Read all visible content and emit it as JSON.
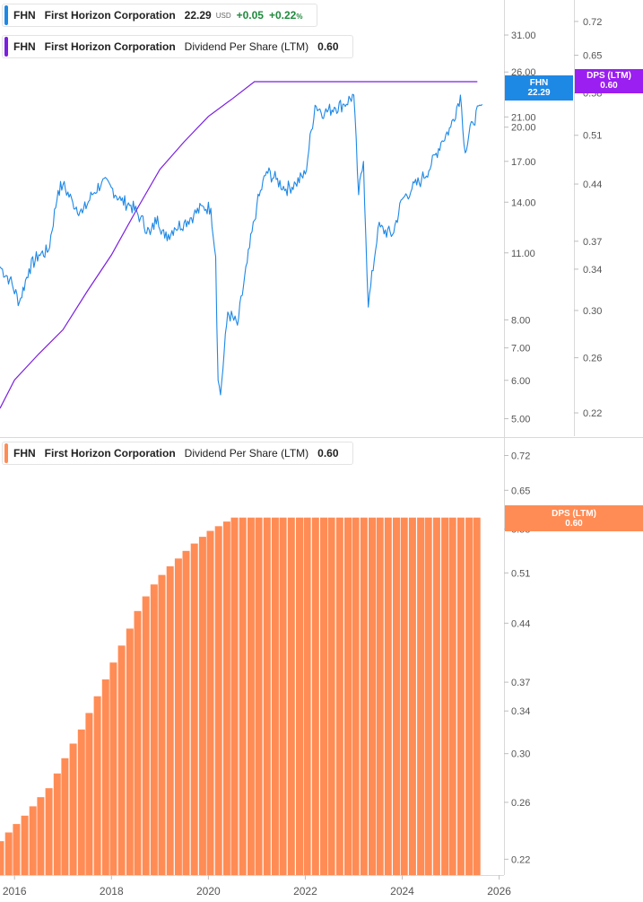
{
  "legend_top": {
    "ticker": "FHN",
    "company": "First Horizon Corporation",
    "price": "22.29",
    "currency": "USD",
    "change": "+0.05",
    "change_pct": "+0.22",
    "pct_sign": "%",
    "color": "#1e88e5"
  },
  "legend_mid": {
    "ticker": "FHN",
    "company": "First Horizon Corporation",
    "metric": "Dividend Per Share (LTM)",
    "value": "0.60",
    "color": "#7b1fe0"
  },
  "legend_bottom": {
    "ticker": "FHN",
    "company": "First Horizon Corporation",
    "metric": "Dividend Per Share (LTM)",
    "value": "0.60",
    "color": "#ff8c55"
  },
  "tags": {
    "price_label": "FHN",
    "price_value": "22.29",
    "dps_label": "DPS (LTM)",
    "dps_value": "0.60",
    "dps_bottom_label": "DPS (LTM)",
    "dps_bottom_value": "0.60"
  },
  "chart_data": [
    {
      "type": "line",
      "title": "FHN price",
      "scale": "log",
      "ylim": [
        4.6,
        36.0
      ],
      "yticks": [
        5.0,
        6.0,
        7.0,
        8.0,
        11.0,
        14.0,
        17.0,
        20.0,
        21.0,
        26.0,
        31.0
      ],
      "series": [
        {
          "name": "FHN",
          "color": "#1e88e5",
          "x": [
            2015.7,
            2015.9,
            2016.1,
            2016.3,
            2016.5,
            2016.7,
            2016.9,
            2017.0,
            2017.2,
            2017.4,
            2017.6,
            2017.8,
            2018.0,
            2018.2,
            2018.4,
            2018.6,
            2018.8,
            2018.95,
            2019.1,
            2019.3,
            2019.5,
            2019.7,
            2019.9,
            2020.05,
            2020.15,
            2020.2,
            2020.25,
            2020.4,
            2020.6,
            2020.8,
            2021.0,
            2021.2,
            2021.4,
            2021.6,
            2021.8,
            2022.0,
            2022.2,
            2022.4,
            2022.6,
            2022.8,
            2023.0,
            2023.1,
            2023.2,
            2023.3,
            2023.5,
            2023.8,
            2024.0,
            2024.2,
            2024.4,
            2024.6,
            2024.8,
            2025.0,
            2025.2,
            2025.3,
            2025.45,
            2025.65
          ],
          "values": [
            10.3,
            9.7,
            8.7,
            10.2,
            10.9,
            11.1,
            14.8,
            15.2,
            14.0,
            13.3,
            14.5,
            15.4,
            15.0,
            14.1,
            13.8,
            13.0,
            12.0,
            13.1,
            11.8,
            12.4,
            12.7,
            13.2,
            13.7,
            13.6,
            10.8,
            6.0,
            5.6,
            8.3,
            7.8,
            10.5,
            13.8,
            16.2,
            15.6,
            14.9,
            15.3,
            16.0,
            22.2,
            21.4,
            22.0,
            22.3,
            23.3,
            14.5,
            17.0,
            8.5,
            12.4,
            12.0,
            14.2,
            14.9,
            15.6,
            16.7,
            18.6,
            20.0,
            23.3,
            17.7,
            20.5,
            22.29
          ]
        }
      ]
    },
    {
      "type": "line",
      "title": "DPS (LTM)",
      "scale": "log",
      "ylim": [
        0.205,
        0.76
      ],
      "yticks": [
        0.22,
        0.26,
        0.3,
        0.34,
        0.37,
        0.44,
        0.51,
        0.58,
        0.65,
        0.72
      ],
      "series": [
        {
          "name": "Dividend Per Share (LTM)",
          "color": "#7b1fe0",
          "x": [
            2015.7,
            2016.0,
            2016.5,
            2017.0,
            2017.5,
            2018.0,
            2018.5,
            2019.0,
            2019.5,
            2020.0,
            2020.5,
            2020.95,
            2021.5,
            2022.0,
            2022.5,
            2023.0,
            2023.5,
            2024.0,
            2024.5,
            2025.0,
            2025.55
          ],
          "values": [
            0.223,
            0.243,
            0.263,
            0.283,
            0.318,
            0.355,
            0.405,
            0.46,
            0.5,
            0.54,
            0.57,
            0.6,
            0.6,
            0.6,
            0.6,
            0.6,
            0.6,
            0.6,
            0.6,
            0.6,
            0.6
          ]
        }
      ]
    },
    {
      "type": "bar",
      "title": "DPS (LTM)",
      "scale": "log",
      "ylim": [
        0.21,
        0.75
      ],
      "yticks": [
        0.22,
        0.26,
        0.3,
        0.34,
        0.37,
        0.44,
        0.51,
        0.58,
        0.65,
        0.72
      ],
      "xticks": [
        "2016",
        "2018",
        "2020",
        "2022",
        "2024",
        "2026"
      ],
      "series": [
        {
          "name": "Dividend Per Share (LTM)",
          "color": "#ff8c55",
          "x": [
            2015.71,
            2015.88,
            2016.04,
            2016.21,
            2016.38,
            2016.54,
            2016.71,
            2016.88,
            2017.04,
            2017.21,
            2017.38,
            2017.54,
            2017.71,
            2017.88,
            2018.04,
            2018.21,
            2018.38,
            2018.54,
            2018.71,
            2018.88,
            2019.04,
            2019.21,
            2019.38,
            2019.54,
            2019.71,
            2019.88,
            2020.04,
            2020.21,
            2020.38,
            2020.54,
            2020.71,
            2020.88,
            2021.04,
            2021.21,
            2021.38,
            2021.54,
            2021.71,
            2021.88,
            2022.04,
            2022.21,
            2022.38,
            2022.54,
            2022.71,
            2022.88,
            2023.04,
            2023.21,
            2023.38,
            2023.54,
            2023.71,
            2023.88,
            2024.04,
            2024.21,
            2024.38,
            2024.54,
            2024.71,
            2024.88,
            2025.04,
            2025.21,
            2025.38,
            2025.54
          ],
          "values": [
            0.232,
            0.238,
            0.244,
            0.25,
            0.257,
            0.264,
            0.271,
            0.283,
            0.296,
            0.309,
            0.322,
            0.338,
            0.355,
            0.373,
            0.392,
            0.412,
            0.433,
            0.456,
            0.476,
            0.493,
            0.507,
            0.52,
            0.532,
            0.544,
            0.556,
            0.567,
            0.577,
            0.585,
            0.593,
            0.6,
            0.6,
            0.6,
            0.6,
            0.6,
            0.6,
            0.6,
            0.6,
            0.6,
            0.6,
            0.6,
            0.6,
            0.6,
            0.6,
            0.6,
            0.6,
            0.6,
            0.6,
            0.6,
            0.6,
            0.6,
            0.6,
            0.6,
            0.6,
            0.6,
            0.6,
            0.6,
            0.6,
            0.6,
            0.6,
            0.6
          ]
        }
      ]
    }
  ]
}
